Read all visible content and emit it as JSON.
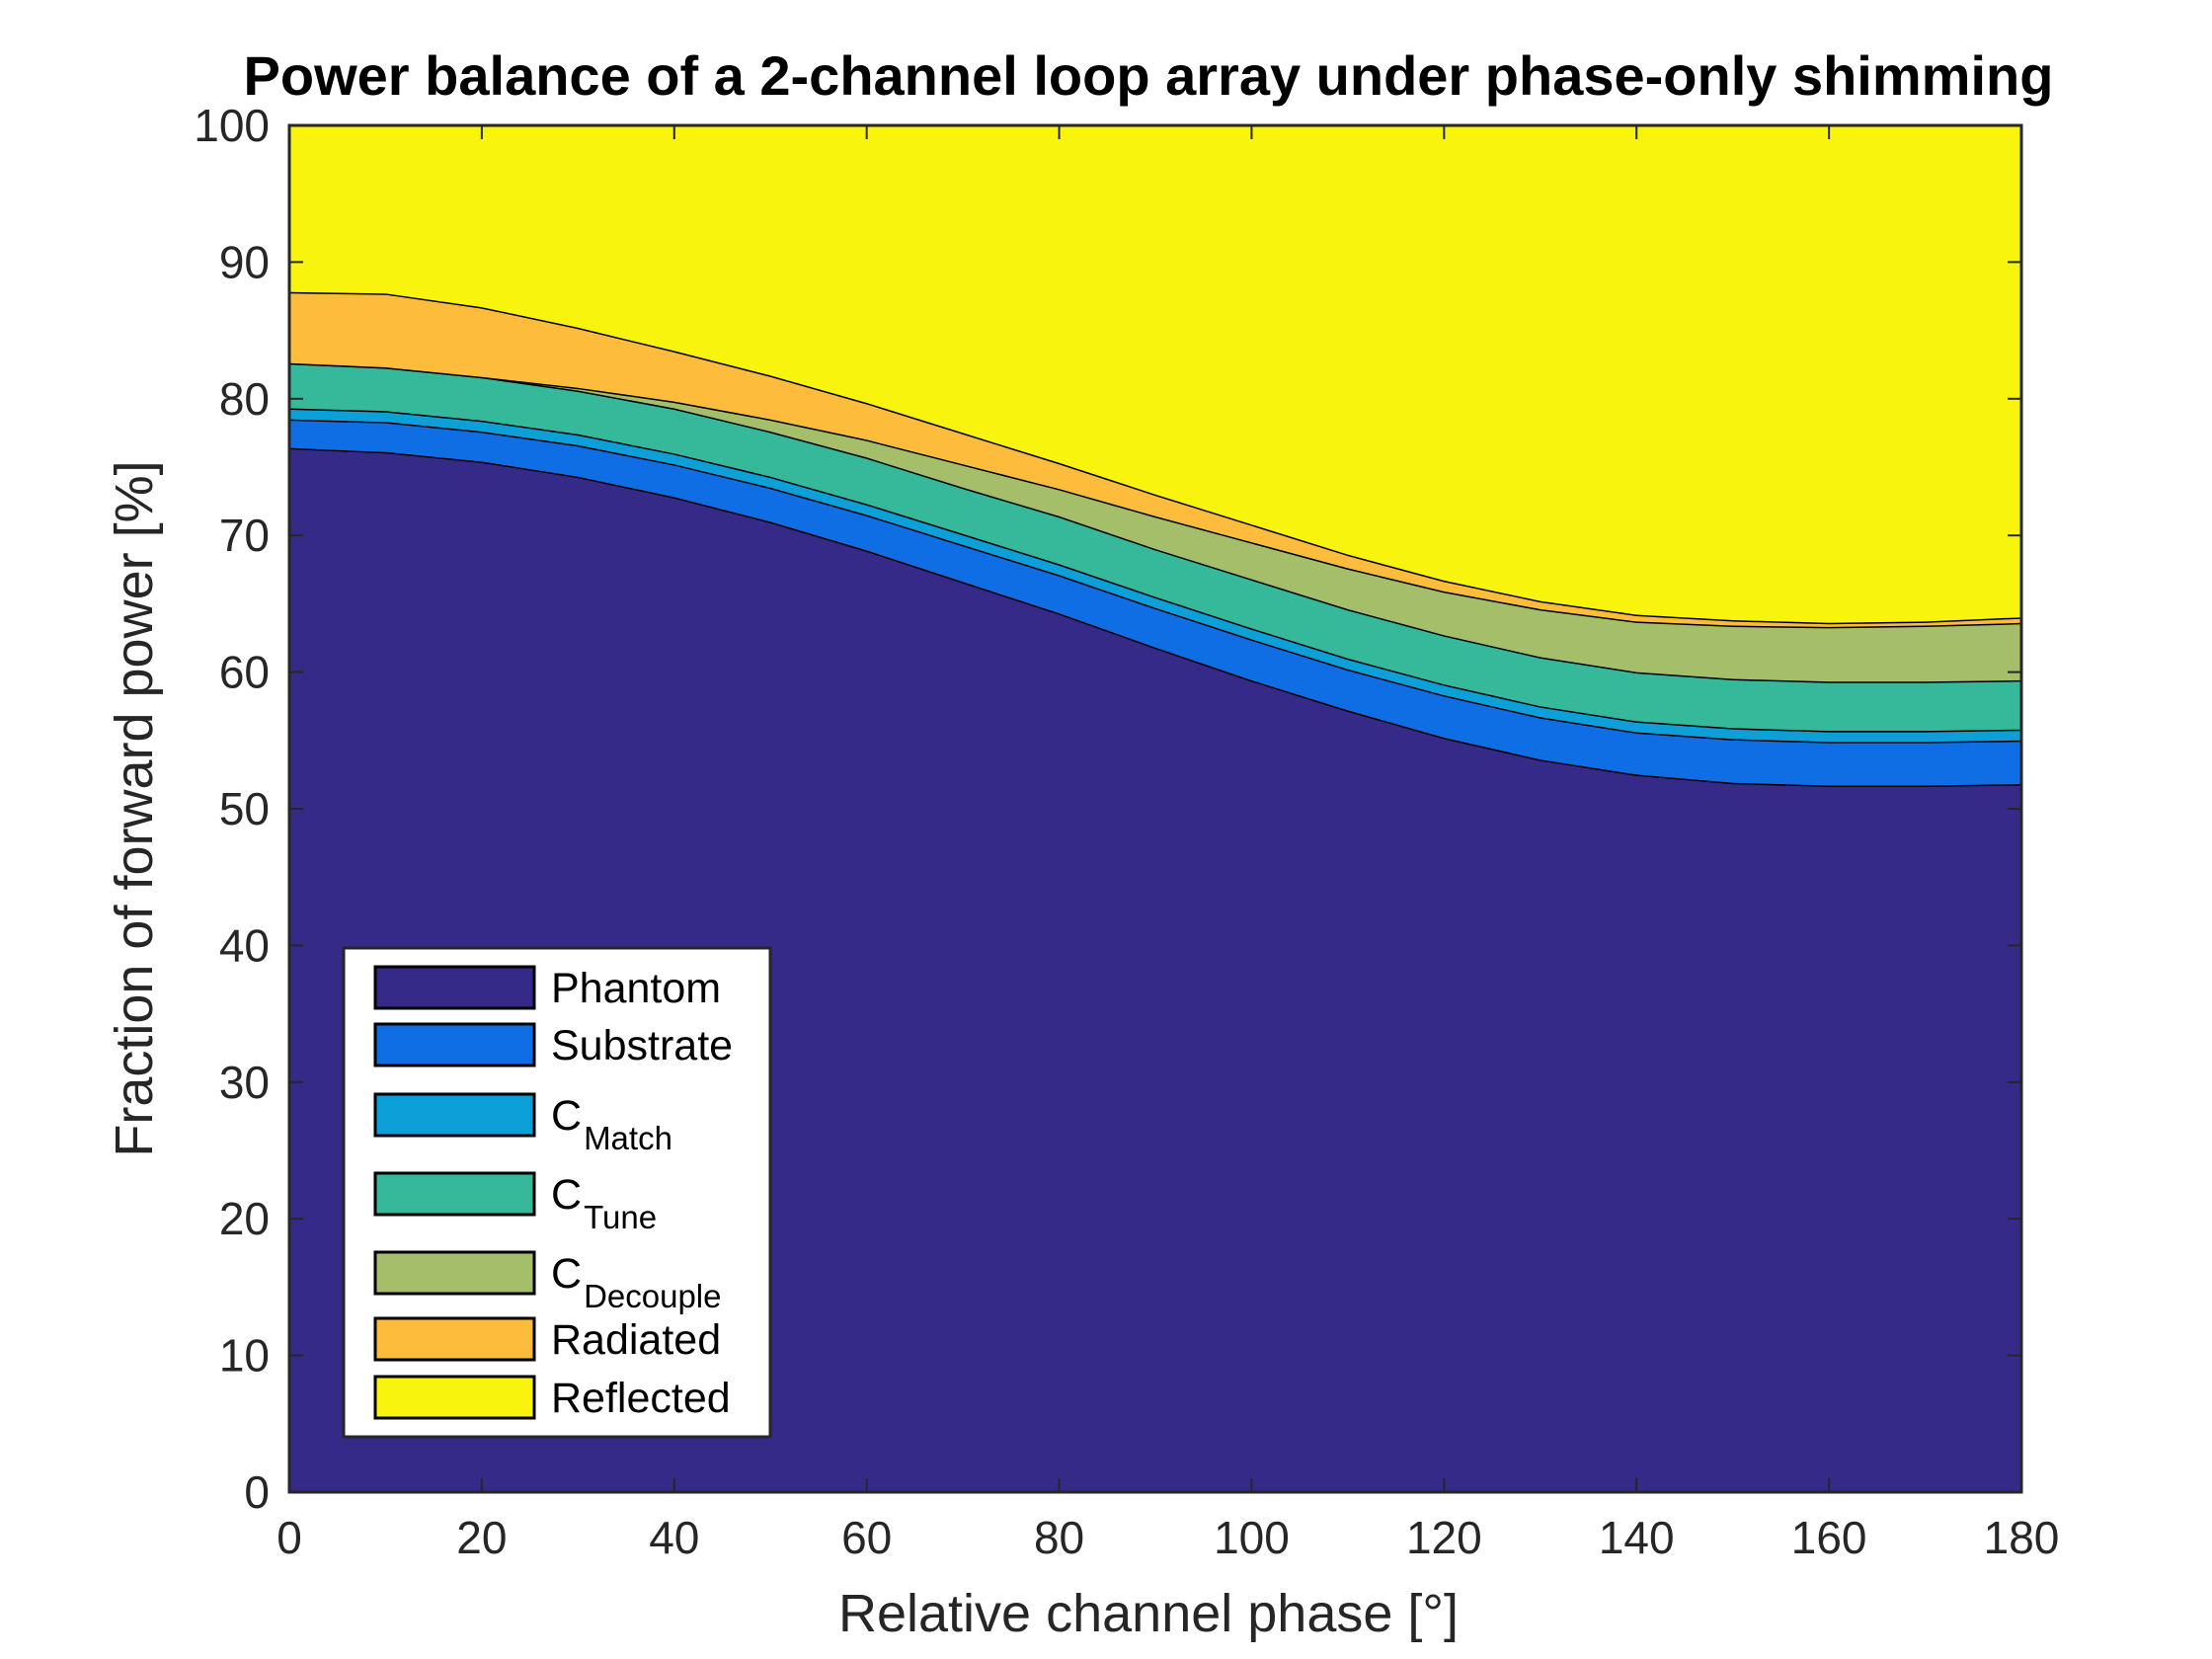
{
  "chart_data": {
    "type": "area",
    "stacked": true,
    "title": "Power balance of a 2-channel loop array under phase-only shimming",
    "xlabel": "Relative channel phase [°]",
    "ylabel": "Fraction of forward power [%]",
    "xlim": [
      0,
      180
    ],
    "ylim": [
      0,
      100
    ],
    "xticks": [
      0,
      20,
      40,
      60,
      80,
      100,
      120,
      140,
      160,
      180
    ],
    "yticks": [
      0,
      10,
      20,
      30,
      40,
      50,
      60,
      70,
      80,
      90,
      100
    ],
    "grid": false,
    "legend_position": "bottom-left",
    "x": [
      0,
      10,
      20,
      30,
      40,
      50,
      60,
      70,
      80,
      90,
      100,
      110,
      120,
      130,
      140,
      150,
      160,
      170,
      180
    ],
    "series": [
      {
        "name": "Phantom",
        "label_main": "Phantom",
        "label_sub": "",
        "color": "#352a87",
        "values": [
          76.4,
          76.1,
          75.4,
          74.3,
          72.8,
          71.0,
          68.9,
          66.6,
          64.3,
          61.8,
          59.4,
          57.2,
          55.2,
          53.6,
          52.5,
          51.9,
          51.7,
          51.7,
          51.8
        ]
      },
      {
        "name": "Substrate",
        "label_main": "Substrate",
        "label_sub": "",
        "color": "#0f6ee3",
        "values": [
          2.1,
          2.2,
          2.2,
          2.3,
          2.4,
          2.5,
          2.6,
          2.7,
          2.8,
          2.9,
          3.0,
          3.0,
          3.1,
          3.1,
          3.1,
          3.2,
          3.2,
          3.2,
          3.2
        ]
      },
      {
        "name": "C_Match",
        "label_main": "C",
        "label_sub": "Match",
        "color": "#0d9fd8",
        "values": [
          0.8,
          0.8,
          0.8,
          0.8,
          0.8,
          0.8,
          0.8,
          0.8,
          0.8,
          0.8,
          0.8,
          0.8,
          0.8,
          0.8,
          0.8,
          0.8,
          0.8,
          0.8,
          0.8
        ]
      },
      {
        "name": "C_Tune",
        "label_main": "C",
        "label_sub": "Tune",
        "color": "#36b99b",
        "values": [
          3.3,
          3.2,
          3.2,
          3.2,
          3.3,
          3.3,
          3.4,
          3.4,
          3.5,
          3.5,
          3.6,
          3.6,
          3.6,
          3.6,
          3.6,
          3.6,
          3.6,
          3.6,
          3.6
        ]
      },
      {
        "name": "C_Decouple",
        "label_main": "C",
        "label_sub": "Decouple",
        "color": "#a5be6a",
        "values": [
          0.0,
          0.0,
          0.0,
          0.2,
          0.5,
          0.9,
          1.3,
          1.7,
          2.0,
          2.4,
          2.7,
          3.0,
          3.2,
          3.5,
          3.7,
          3.9,
          4.0,
          4.1,
          4.2
        ]
      },
      {
        "name": "Radiated",
        "label_main": "Radiated",
        "label_sub": "",
        "color": "#fdbc3c",
        "values": [
          5.2,
          5.4,
          5.1,
          4.4,
          3.7,
          3.2,
          2.7,
          2.3,
          1.9,
          1.6,
          1.3,
          1.0,
          0.8,
          0.6,
          0.5,
          0.4,
          0.3,
          0.3,
          0.4
        ]
      },
      {
        "name": "Reflected",
        "label_main": "Reflected",
        "label_sub": "",
        "color": "#f8f40e",
        "values": [
          12.2,
          12.3,
          13.3,
          14.8,
          16.5,
          18.3,
          20.3,
          22.5,
          24.7,
          27.0,
          29.2,
          31.4,
          33.3,
          34.8,
          35.8,
          36.2,
          36.4,
          36.3,
          36.0
        ]
      }
    ]
  }
}
